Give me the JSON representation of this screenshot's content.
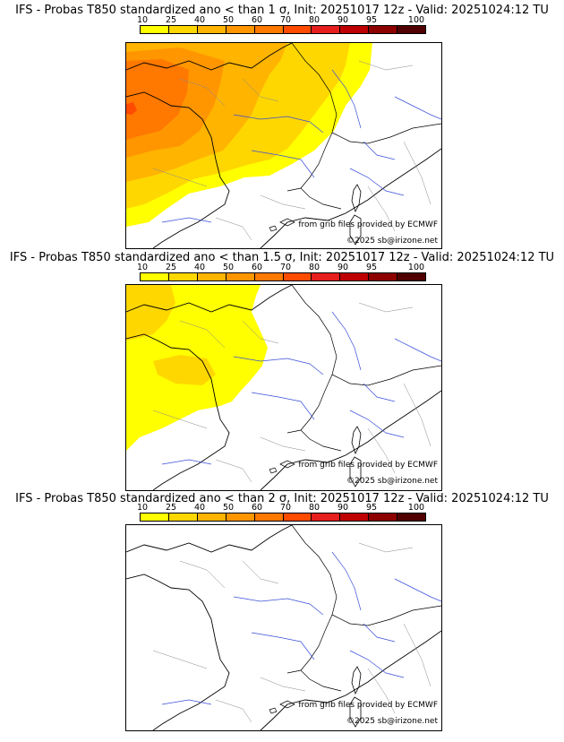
{
  "colorbar": {
    "ticks": [
      "10",
      "25",
      "40",
      "50",
      "60",
      "70",
      "80",
      "90",
      "95",
      "100"
    ],
    "colors": [
      "#ffff00",
      "#ffd700",
      "#ffb400",
      "#ff9600",
      "#ff7800",
      "#ff4b00",
      "#e61e1e",
      "#be0000",
      "#8c0000",
      "#500000"
    ]
  },
  "panels": [
    {
      "title": "IFS - Probas T850  standardized ano < than 1 σ, Init: 20251017 12z - Valid: 20251024:12 TU",
      "source": "from grib files provided by ECMWF",
      "copyright": "©2025 sb@irizone.net",
      "max_probability_class": "70"
    },
    {
      "title": "IFS - Probas T850  standardized ano < than 1.5 σ, Init: 20251017 12z - Valid: 20251024:12 TU",
      "source": "from grib files provided by ECMWF",
      "copyright": "©2025 sb@irizone.net",
      "max_probability_class": "25"
    },
    {
      "title": "IFS - Probas T850  standardized ano < than 2 σ, Init: 20251017 12z - Valid: 20251024:12 TU",
      "source": "from grib files provided by ECMWF",
      "copyright": "©2025 sb@irizone.net",
      "max_probability_class": "0"
    }
  ]
}
